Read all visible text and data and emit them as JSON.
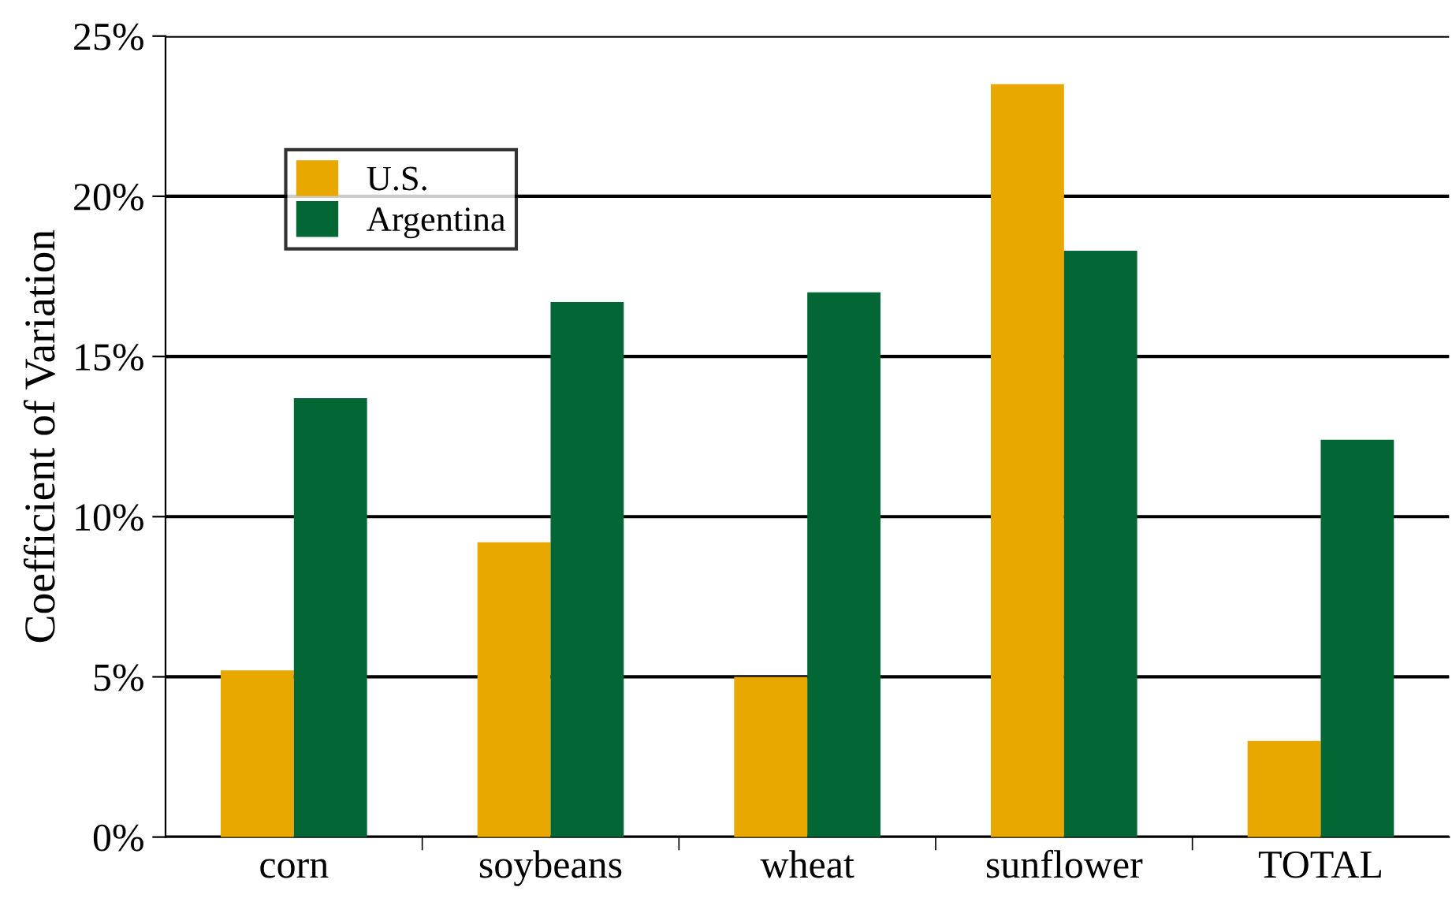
{
  "chart_data": {
    "type": "bar",
    "ylabel": "Coefficient of Variation",
    "categories": [
      "corn",
      "soybeans",
      "wheat",
      "sunflower",
      "TOTAL"
    ],
    "series": [
      {
        "name": "U.S.",
        "color": "#e8a800",
        "values": [
          5.2,
          9.2,
          5.0,
          23.5,
          3.0
        ]
      },
      {
        "name": "Argentina",
        "color": "#036635",
        "values": [
          13.7,
          16.7,
          17.0,
          18.3,
          12.4
        ]
      }
    ],
    "ylim": [
      0,
      25
    ],
    "yticks": [
      {
        "value": 0,
        "label": "0%"
      },
      {
        "value": 5,
        "label": "5%"
      },
      {
        "value": 10,
        "label": "10%"
      },
      {
        "value": 15,
        "label": "15%"
      },
      {
        "value": 20,
        "label": "20%"
      },
      {
        "value": 25,
        "label": "25%"
      }
    ],
    "grid": "y",
    "legend": "top left"
  }
}
